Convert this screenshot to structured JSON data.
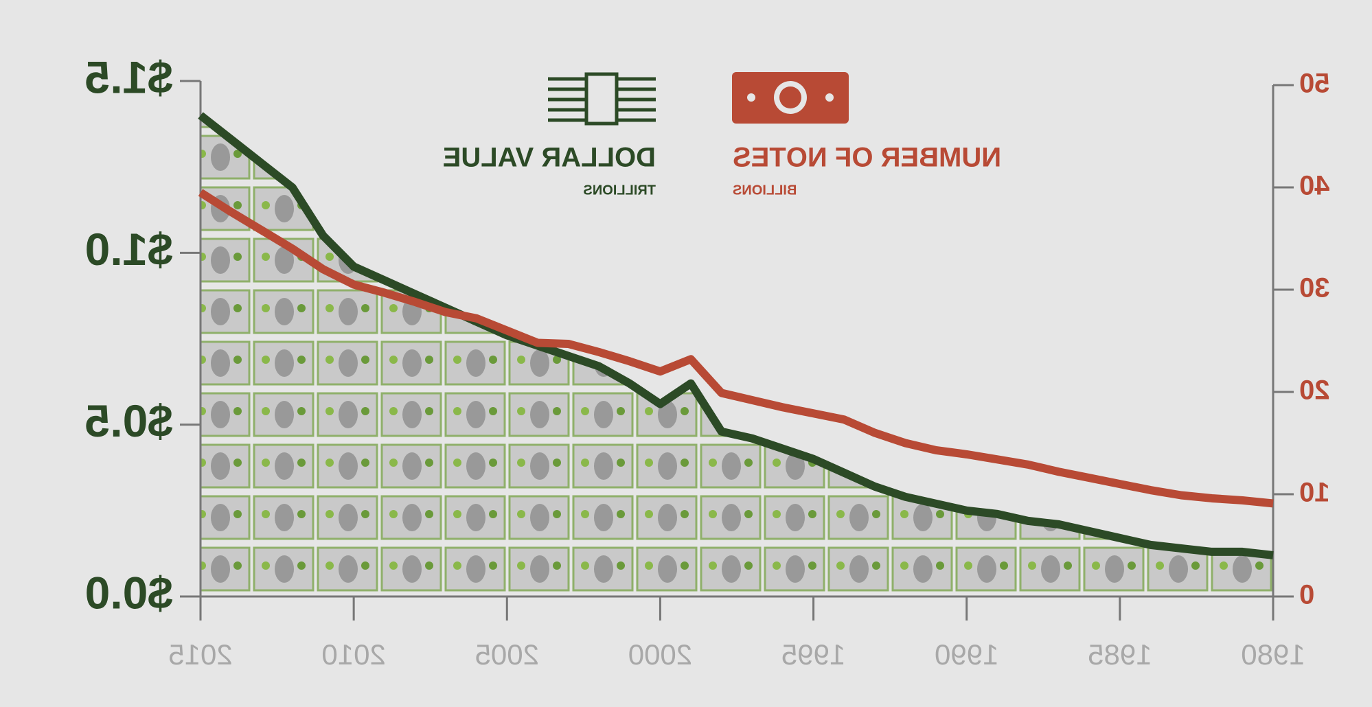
{
  "chart_data": {
    "type": "line",
    "x": [
      1980,
      1981,
      1982,
      1983,
      1984,
      1985,
      1986,
      1987,
      1988,
      1989,
      1990,
      1991,
      1992,
      1993,
      1994,
      1995,
      1996,
      1997,
      1998,
      1999,
      2000,
      2001,
      2002,
      2003,
      2004,
      2005,
      2006,
      2007,
      2008,
      2009,
      2010,
      2011,
      2012,
      2013,
      2014,
      2015
    ],
    "series": [
      {
        "name": "NUMBER OF NOTES",
        "sublabel": "BILLIONS",
        "color": "#b84a35",
        "values": [
          9.1,
          9.4,
          9.6,
          9.9,
          10.4,
          11.0,
          11.6,
          12.2,
          12.9,
          13.4,
          13.9,
          14.3,
          15.0,
          16.0,
          17.3,
          17.9,
          18.5,
          19.2,
          19.9,
          23.2,
          22.0,
          23.0,
          23.9,
          24.7,
          24.8,
          26.0,
          27.2,
          27.8,
          28.8,
          29.7,
          30.5,
          32.0,
          34.0,
          35.8,
          37.6,
          39.5
        ]
      },
      {
        "name": "DOLLAR VALUE",
        "sublabel": "TRILLIONS",
        "color": "#2c4a26",
        "axis": "y2",
        "values": [
          0.12,
          0.13,
          0.13,
          0.14,
          0.15,
          0.17,
          0.19,
          0.21,
          0.22,
          0.24,
          0.25,
          0.27,
          0.29,
          0.32,
          0.36,
          0.4,
          0.43,
          0.46,
          0.48,
          0.62,
          0.56,
          0.62,
          0.67,
          0.7,
          0.73,
          0.76,
          0.8,
          0.84,
          0.88,
          0.92,
          0.96,
          1.05,
          1.19,
          1.26,
          1.33,
          1.4
        ]
      }
    ],
    "xlim": [
      1980,
      2015
    ],
    "xticks": [
      1980,
      1985,
      1990,
      1995,
      2000,
      2005,
      2010,
      2015
    ],
    "ylim": [
      0,
      50
    ],
    "yticks": [
      0,
      10,
      20,
      30,
      40,
      50
    ],
    "y2lim": [
      0,
      1.5
    ],
    "y2ticks": [
      {
        "value": 0,
        "label": "$0.0"
      },
      {
        "value": 0.5,
        "label": "$0.5"
      },
      {
        "value": 1,
        "label": "$1.0"
      },
      {
        "value": 1.5,
        "label": "$1.5"
      }
    ]
  }
}
